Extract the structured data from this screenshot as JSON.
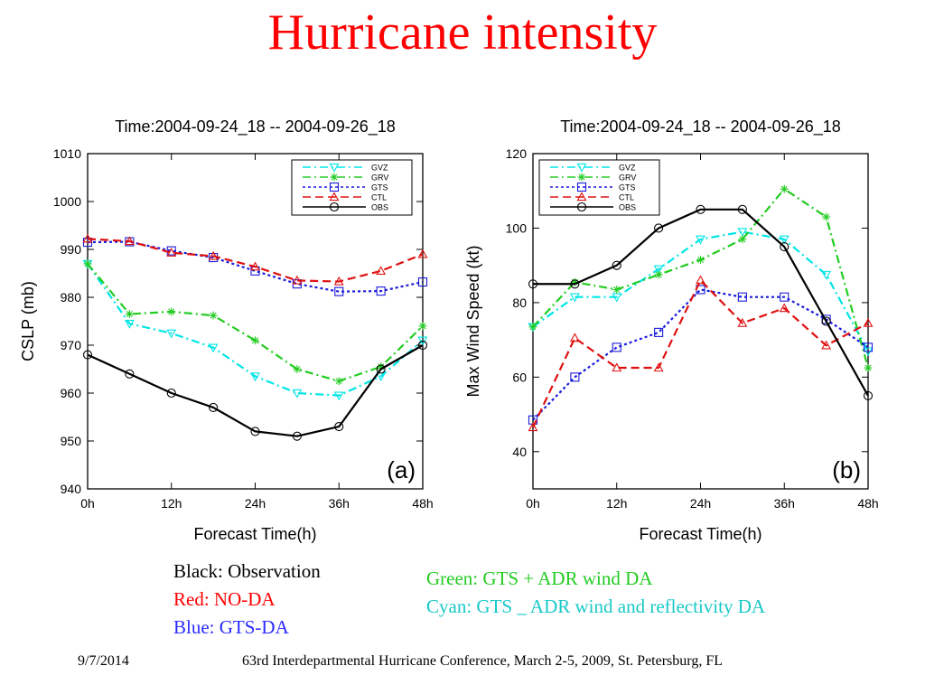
{
  "slide": {
    "title": "Hurricane intensity",
    "captions": {
      "black": "Black: Observation",
      "red": "Red: NO-DA",
      "blue": "Blue: GTS-DA",
      "green": "Green: GTS + ADR wind DA",
      "cyan": "Cyan: GTS _ ADR wind and reflectivity DA"
    },
    "footer": {
      "date": "9/7/2014",
      "conference": "63rd Interdepartmental Hurricane Conference, March 2-5, 2009, St. Petersburg, FL"
    }
  },
  "colors": {
    "title": "#ff0000",
    "GVZ": "#00e5e5",
    "GRV": "#22cc22",
    "GTS": "#1a1ad9",
    "CTL": "#e01010",
    "OBS": "#000000",
    "caption_black": "#000000",
    "caption_red": "#ff0000",
    "caption_blue": "#2a2aff",
    "caption_green": "#22cc22",
    "caption_cyan": "#18c8c8"
  },
  "chart_data": [
    {
      "type": "line",
      "title": "Time:2004-09-24_18 -- 2004-09-26_18",
      "xlabel": "Forecast Time(h)",
      "ylabel": "CSLP (mb)",
      "panel_label": "(a)",
      "x": [
        0,
        6,
        12,
        18,
        24,
        30,
        36,
        42,
        48
      ],
      "xlim": [
        0,
        48
      ],
      "xticks": [
        0,
        12,
        24,
        36,
        48
      ],
      "xtick_labels": [
        "0h",
        "12h",
        "24h",
        "36h",
        "48h"
      ],
      "ylim": [
        940,
        1010
      ],
      "yticks": [
        940,
        950,
        960,
        970,
        980,
        990,
        1000,
        1010
      ],
      "grid": false,
      "legend_position": "top-right",
      "series": [
        {
          "name": "GVZ",
          "marker": "triangle-down",
          "dash": "dash-dot",
          "values": [
            987,
            974.5,
            972.5,
            969.5,
            963.5,
            960,
            959.5,
            963.5,
            971
          ]
        },
        {
          "name": "GRV",
          "marker": "star",
          "dash": "dash-dot",
          "values": [
            987,
            976.5,
            977,
            976.2,
            971,
            965,
            962.5,
            965.5,
            974
          ]
        },
        {
          "name": "GTS",
          "marker": "square",
          "dash": "dotted",
          "values": [
            991.5,
            991.6,
            989.7,
            988.3,
            985.5,
            982.8,
            981.2,
            981.3,
            983.2
          ]
        },
        {
          "name": "CTL",
          "marker": "triangle-up",
          "dash": "dashed",
          "values": [
            992.2,
            991.7,
            989.3,
            988.6,
            986.4,
            983.5,
            983.3,
            985.5,
            989
          ]
        },
        {
          "name": "OBS",
          "marker": "circle",
          "dash": "solid",
          "values": [
            968,
            964,
            960,
            957,
            952,
            951,
            953,
            965,
            970
          ]
        }
      ]
    },
    {
      "type": "line",
      "title": "Time:2004-09-24_18 -- 2004-09-26_18",
      "xlabel": "Forecast Time(h)",
      "ylabel": "Max Wind Speed (kt)",
      "panel_label": "(b)",
      "x": [
        0,
        6,
        12,
        18,
        24,
        30,
        36,
        42,
        48
      ],
      "xlim": [
        0,
        48
      ],
      "xticks": [
        0,
        12,
        24,
        36,
        48
      ],
      "xtick_labels": [
        "0h",
        "12h",
        "24h",
        "36h",
        "48h"
      ],
      "ylim": [
        30,
        120
      ],
      "yticks": [
        40,
        60,
        80,
        100,
        120
      ],
      "grid": false,
      "legend_position": "top-left",
      "series": [
        {
          "name": "GVZ",
          "marker": "triangle-down",
          "dash": "dash-dot",
          "values": [
            73.5,
            81.5,
            81.5,
            89,
            97,
            99,
            97,
            87.5,
            67
          ]
        },
        {
          "name": "GRV",
          "marker": "star",
          "dash": "dash-dot",
          "values": [
            73.5,
            85.5,
            83.5,
            87.5,
            91.5,
            97,
            110.5,
            103,
            62.5
          ]
        },
        {
          "name": "GTS",
          "marker": "square",
          "dash": "dotted",
          "values": [
            48.5,
            60,
            68,
            72,
            83.5,
            81.5,
            81.5,
            75.5,
            68
          ]
        },
        {
          "name": "CTL",
          "marker": "triangle-up",
          "dash": "dashed",
          "values": [
            46.5,
            70.5,
            62.5,
            62.5,
            86,
            74.5,
            78.5,
            68.5,
            74.5
          ]
        },
        {
          "name": "OBS",
          "marker": "circle",
          "dash": "solid",
          "values": [
            85,
            85,
            90,
            100,
            105,
            105,
            95,
            75,
            55
          ]
        }
      ]
    }
  ]
}
